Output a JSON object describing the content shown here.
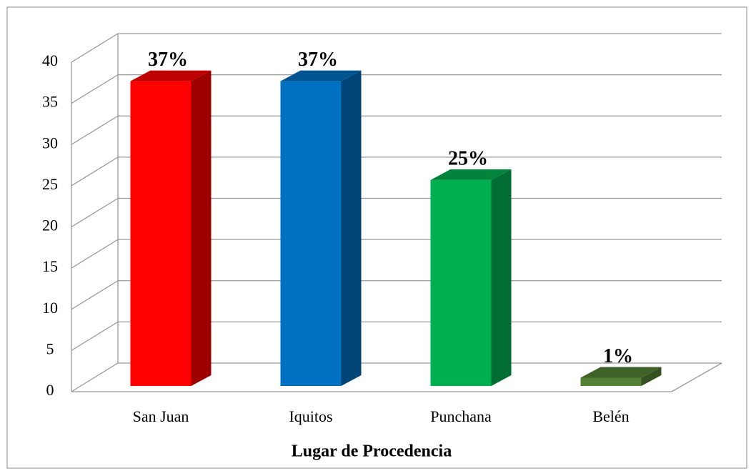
{
  "chart_data": {
    "type": "bar3d",
    "categories": [
      "San Juan",
      "Iquitos",
      "Punchana",
      "Belén"
    ],
    "values": [
      37,
      37,
      25,
      1
    ],
    "value_labels": [
      "37%",
      "37%",
      "25%",
      "1%"
    ],
    "colors": [
      "#ff0000",
      "#0070c0",
      "#00b050",
      "#548235"
    ],
    "xlabel": "Lugar de Procedencia",
    "ylim": [
      0,
      40
    ],
    "yticks": [
      0,
      5,
      10,
      15,
      20,
      25,
      30,
      35,
      40
    ],
    "grid": true
  }
}
